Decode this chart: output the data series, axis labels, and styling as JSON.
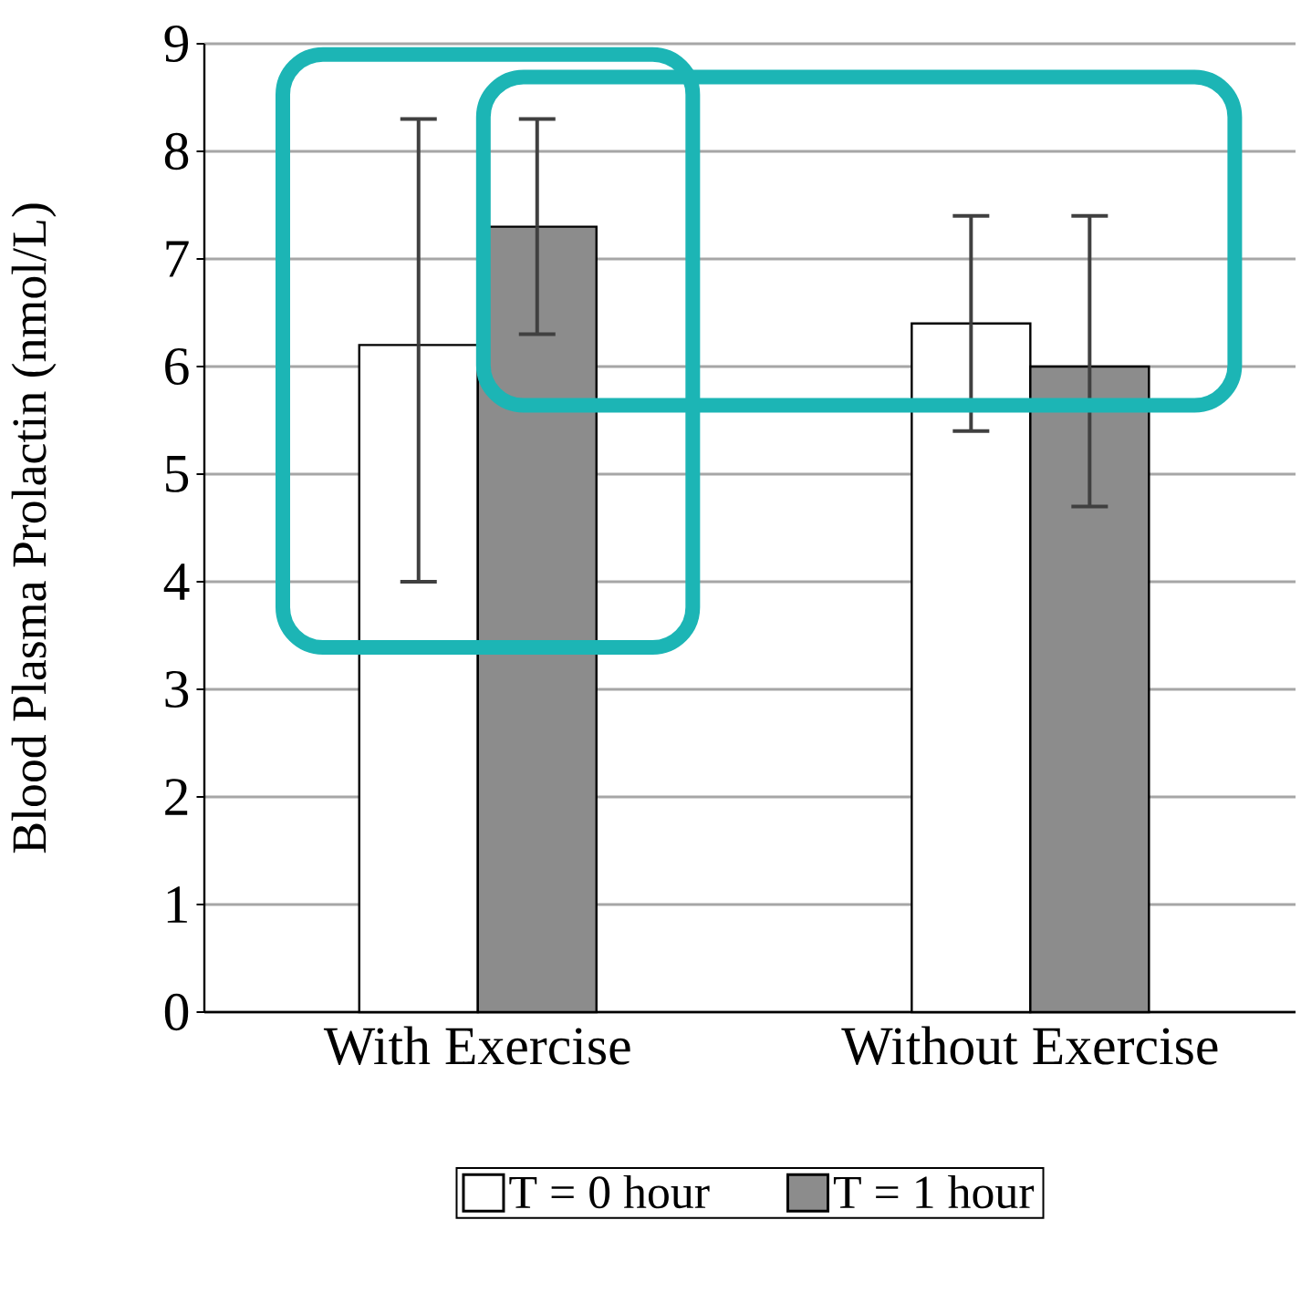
{
  "chart_data": {
    "type": "bar",
    "ylabel": "Blood Plasma Prolactin (nmol/L)",
    "categories": [
      "With Exercise",
      "Without Exercise"
    ],
    "series": [
      {
        "name": "T = 0 hour",
        "color": "#ffffff",
        "values": [
          6.2,
          6.4
        ],
        "errors": [
          [
            4.0,
            8.3
          ],
          [
            5.4,
            7.4
          ]
        ]
      },
      {
        "name": "T = 1 hour",
        "color": "#8c8c8c",
        "values": [
          7.3,
          6.0
        ],
        "errors": [
          [
            6.3,
            8.3
          ],
          [
            4.7,
            7.4
          ]
        ]
      }
    ],
    "ylim": [
      0,
      9
    ],
    "yticks": [
      0,
      1,
      2,
      3,
      4,
      5,
      6,
      7,
      8,
      9
    ],
    "grid": "y",
    "legend": "bottom"
  }
}
